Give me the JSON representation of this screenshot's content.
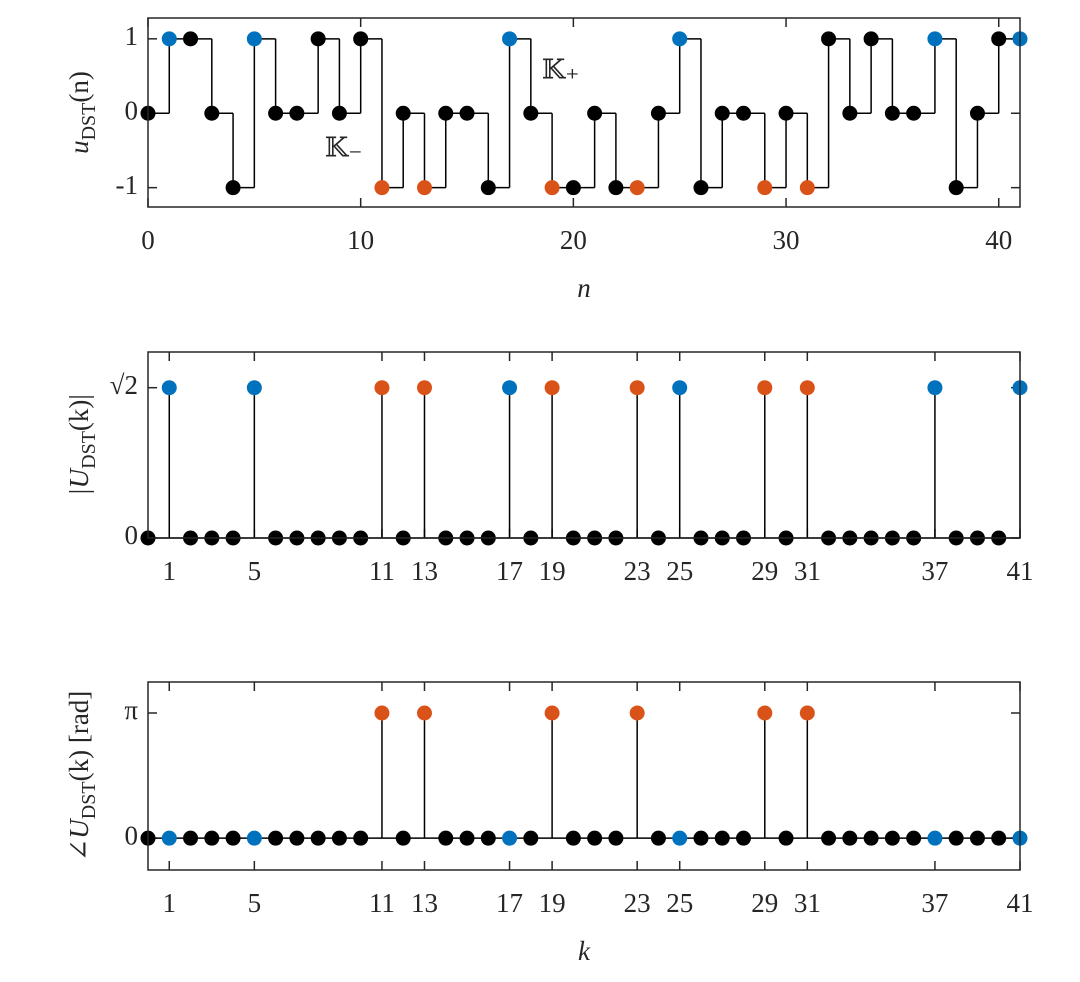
{
  "chart_data": [
    {
      "type": "stairs",
      "ylabel": {
        "main": "u",
        "sub": "DST",
        "rest": "(n)"
      },
      "xlabel": "n",
      "x": [
        0,
        1,
        2,
        3,
        4,
        5,
        6,
        7,
        8,
        9,
        10,
        11,
        12,
        13,
        14,
        15,
        16,
        17,
        18,
        19,
        20,
        21,
        22,
        23,
        24,
        25,
        26,
        27,
        28,
        29,
        30,
        31,
        32,
        33,
        34,
        35,
        36,
        37,
        38,
        39,
        40,
        41
      ],
      "values": [
        0,
        1,
        1,
        0,
        -1,
        1,
        0,
        0,
        1,
        0,
        1,
        -1,
        0,
        -1,
        0,
        0,
        -1,
        1,
        0,
        -1,
        -1,
        0,
        -1,
        -1,
        0,
        1,
        -1,
        0,
        0,
        -1,
        0,
        -1,
        1,
        0,
        1,
        0,
        0,
        1,
        -1,
        0,
        1,
        1
      ],
      "marker_colors": [
        "#000000",
        "#0072BD",
        "#000000",
        "#000000",
        "#000000",
        "#0072BD",
        "#000000",
        "#000000",
        "#000000",
        "#000000",
        "#000000",
        "#D95319",
        "#000000",
        "#D95319",
        "#000000",
        "#000000",
        "#000000",
        "#0072BD",
        "#000000",
        "#D95319",
        "#000000",
        "#000000",
        "#000000",
        "#D95319",
        "#000000",
        "#0072BD",
        "#000000",
        "#000000",
        "#000000",
        "#D95319",
        "#000000",
        "#D95319",
        "#000000",
        "#000000",
        "#000000",
        "#000000",
        "#000000",
        "#0072BD",
        "#000000",
        "#000000",
        "#000000",
        "#0072BD"
      ],
      "line_color": "#000000",
      "xlim": [
        0,
        41
      ],
      "xticks": [
        0,
        10,
        20,
        30,
        40
      ],
      "ylim": [
        -1.26,
        1.28
      ],
      "yticks": [
        -1,
        0,
        1
      ],
      "annotations": [
        {
          "text": "𝕂₊",
          "x": 19.4,
          "y": 0.55,
          "color": "#0072BD"
        },
        {
          "text": "𝕂₋",
          "x": 9.2,
          "y": -0.5,
          "color": "#D95319"
        }
      ]
    },
    {
      "type": "stem",
      "ylabel": {
        "main": "|U",
        "sub": "DST",
        "rest": "(k)|"
      },
      "x": [
        0,
        1,
        2,
        3,
        4,
        5,
        6,
        7,
        8,
        9,
        10,
        11,
        12,
        13,
        14,
        15,
        16,
        17,
        18,
        19,
        20,
        21,
        22,
        23,
        24,
        25,
        26,
        27,
        28,
        29,
        30,
        31,
        32,
        33,
        34,
        35,
        36,
        37,
        38,
        39,
        40,
        41
      ],
      "values": [
        0,
        1.4142,
        0,
        0,
        0,
        1.4142,
        0,
        0,
        0,
        0,
        0,
        1.4142,
        0,
        1.4142,
        0,
        0,
        0,
        1.4142,
        0,
        1.4142,
        0,
        0,
        0,
        1.4142,
        0,
        1.4142,
        0,
        0,
        0,
        1.4142,
        0,
        1.4142,
        0,
        0,
        0,
        0,
        0,
        1.4142,
        0,
        0,
        0,
        1.4142
      ],
      "marker_colors": [
        "#000000",
        "#0072BD",
        "#000000",
        "#000000",
        "#000000",
        "#0072BD",
        "#000000",
        "#000000",
        "#000000",
        "#000000",
        "#000000",
        "#D95319",
        "#000000",
        "#D95319",
        "#000000",
        "#000000",
        "#000000",
        "#0072BD",
        "#000000",
        "#D95319",
        "#000000",
        "#000000",
        "#000000",
        "#D95319",
        "#000000",
        "#0072BD",
        "#000000",
        "#000000",
        "#000000",
        "#D95319",
        "#000000",
        "#D95319",
        "#000000",
        "#000000",
        "#000000",
        "#000000",
        "#000000",
        "#0072BD",
        "#000000",
        "#000000",
        "#000000",
        "#0072BD"
      ],
      "line_color": "#000000",
      "xlim": [
        0,
        41
      ],
      "xticks": [
        1,
        5,
        11,
        13,
        17,
        19,
        23,
        25,
        29,
        31,
        37,
        41
      ],
      "ylim": [
        0,
        1.75
      ],
      "yticks": [
        0,
        {
          "value": 1.4142,
          "label": "√2"
        }
      ]
    },
    {
      "type": "stem",
      "ylabel": {
        "main": "∠U",
        "sub": "DST",
        "rest": "(k) [rad]"
      },
      "xlabel": "k",
      "x": [
        0,
        1,
        2,
        3,
        4,
        5,
        6,
        7,
        8,
        9,
        10,
        11,
        12,
        13,
        14,
        15,
        16,
        17,
        18,
        19,
        20,
        21,
        22,
        23,
        24,
        25,
        26,
        27,
        28,
        29,
        30,
        31,
        32,
        33,
        34,
        35,
        36,
        37,
        38,
        39,
        40,
        41
      ],
      "values": [
        0,
        0,
        0,
        0,
        0,
        0,
        0,
        0,
        0,
        0,
        0,
        3.1416,
        0,
        3.1416,
        0,
        0,
        0,
        0,
        0,
        3.1416,
        0,
        0,
        0,
        3.1416,
        0,
        0,
        0,
        0,
        0,
        3.1416,
        0,
        3.1416,
        0,
        0,
        0,
        0,
        0,
        0,
        0,
        0,
        0,
        0
      ],
      "marker_colors": [
        "#000000",
        "#0072BD",
        "#000000",
        "#000000",
        "#000000",
        "#0072BD",
        "#000000",
        "#000000",
        "#000000",
        "#000000",
        "#000000",
        "#D95319",
        "#000000",
        "#D95319",
        "#000000",
        "#000000",
        "#000000",
        "#0072BD",
        "#000000",
        "#D95319",
        "#000000",
        "#000000",
        "#000000",
        "#D95319",
        "#000000",
        "#0072BD",
        "#000000",
        "#000000",
        "#000000",
        "#D95319",
        "#000000",
        "#D95319",
        "#000000",
        "#000000",
        "#000000",
        "#000000",
        "#000000",
        "#0072BD",
        "#000000",
        "#000000",
        "#000000",
        "#0072BD"
      ],
      "line_color": "#000000",
      "xlim": [
        0,
        41
      ],
      "xticks": [
        1,
        5,
        11,
        13,
        17,
        19,
        23,
        25,
        29,
        31,
        37,
        41
      ],
      "ylim": [
        -0.8,
        3.92
      ],
      "yticks": [
        0,
        {
          "value": 3.1416,
          "label": "π"
        }
      ]
    }
  ]
}
